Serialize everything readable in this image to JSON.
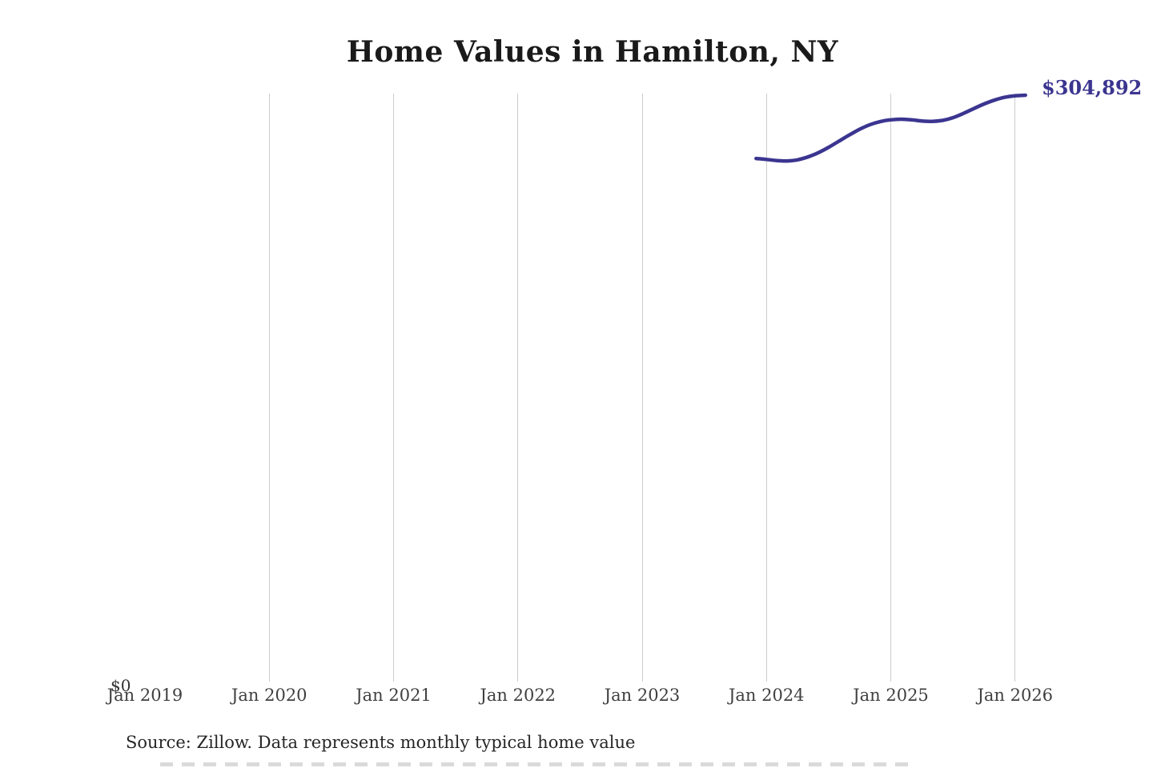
{
  "title": "Home Values in Hamilton, NY",
  "annotations": {
    "end_value_label": "$304,892"
  },
  "y_axis": {
    "zero_label": "$0"
  },
  "x_axis": {
    "labels": [
      {
        "label": "Jan 2019",
        "gridline": false
      },
      {
        "label": "Jan 2020",
        "gridline": true
      },
      {
        "label": "Jan 2021",
        "gridline": true
      },
      {
        "label": "Jan 2022",
        "gridline": true
      },
      {
        "label": "Jan 2023",
        "gridline": true
      },
      {
        "label": "Jan 2024",
        "gridline": true
      },
      {
        "label": "Jan 2025",
        "gridline": true
      },
      {
        "label": "Jan 2026",
        "gridline": true
      }
    ]
  },
  "source_note": "Source: Zillow. Data represents monthly typical home value",
  "colors": {
    "line": "#3b3590",
    "end_label": "#3b3590",
    "gridline": "#cccccc",
    "title": "#1a1a1a",
    "axis_label": "#404040",
    "source_text": "#262626"
  },
  "chart_data": {
    "type": "line",
    "title": "Home Values in Hamilton, NY",
    "x": [
      "2023-12",
      "2024-01",
      "2024-02",
      "2024-03",
      "2024-04",
      "2024-05",
      "2024-06",
      "2024-07",
      "2024-08",
      "2024-09",
      "2024-10",
      "2024-11",
      "2024-12",
      "2025-01",
      "2025-02",
      "2025-03",
      "2025-04",
      "2025-05",
      "2025-06",
      "2025-07",
      "2025-08",
      "2025-09",
      "2025-10",
      "2025-11",
      "2025-12",
      "2026-01",
      "2026-02"
    ],
    "values": [
      272000,
      271500,
      270900,
      270700,
      271300,
      272800,
      275000,
      277800,
      281000,
      284200,
      287200,
      289600,
      291200,
      292100,
      292400,
      292100,
      291500,
      291300,
      291800,
      293200,
      295400,
      297900,
      300300,
      302300,
      303800,
      304600,
      304892
    ],
    "final_value": 304892,
    "end_label": "$304,892",
    "x_tick_labels": [
      "Jan 2019",
      "Jan 2020",
      "Jan 2021",
      "Jan 2022",
      "Jan 2023",
      "Jan 2024",
      "Jan 2025",
      "Jan 2026"
    ],
    "y_tick_labels": [
      "$0"
    ],
    "ylim": [
      0,
      320000
    ],
    "grid": "vertical",
    "legend": "none"
  }
}
